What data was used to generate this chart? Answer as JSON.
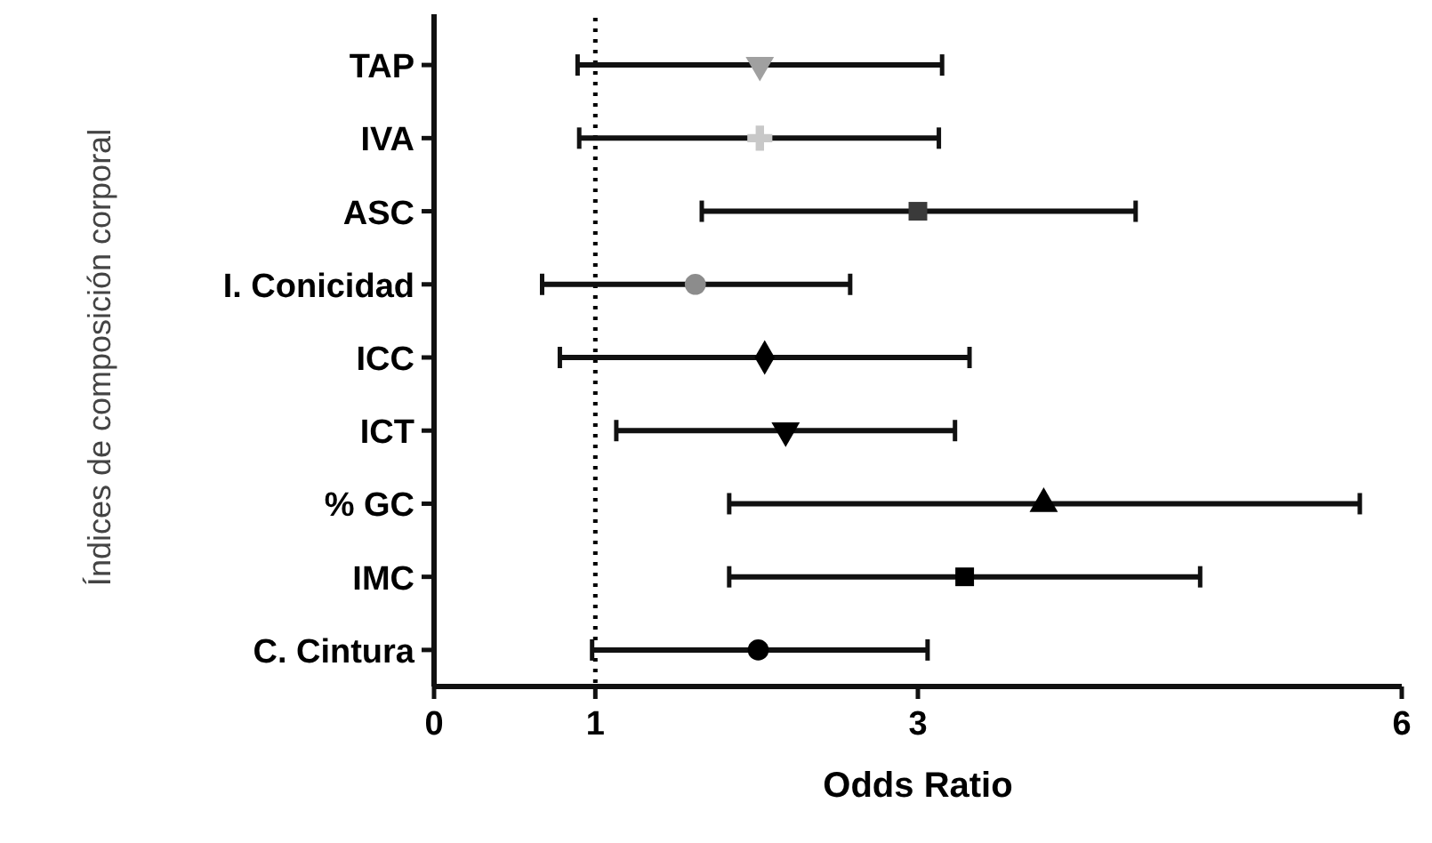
{
  "chart_data": {
    "type": "scatter",
    "orientation": "horizontal",
    "xlabel": "Odds Ratio",
    "ylabel": "Índices de composición corporal",
    "categories": [
      "TAP",
      "IVA",
      "ASC",
      "I. Conicidad",
      "ICC",
      "ICT",
      "% GC",
      "IMC",
      "C. Cintura"
    ],
    "xlim": [
      0,
      6
    ],
    "xticks": [
      0,
      1,
      3,
      6
    ],
    "grid": false,
    "ref_lines": [
      {
        "axis": "x",
        "value": 1,
        "line_style": "dotted",
        "color": "#000000"
      }
    ],
    "series": [
      {
        "color": "#a0a0a0",
        "marker": "triangle-down",
        "values": [
          2.02,
          null,
          null,
          null,
          null,
          null,
          null,
          null,
          null
        ],
        "errors": [
          [
            0.89,
            3.15
          ],
          null,
          null,
          null,
          null,
          null,
          null,
          null,
          null
        ]
      },
      {
        "color": "#c8c8c8",
        "marker": "cross",
        "values": [
          null,
          2.02,
          null,
          null,
          null,
          null,
          null,
          null,
          null
        ],
        "errors": [
          null,
          [
            0.9,
            3.13
          ],
          null,
          null,
          null,
          null,
          null,
          null,
          null
        ]
      },
      {
        "color": "#3a3a3a",
        "marker": "square",
        "values": [
          null,
          null,
          3.0,
          null,
          null,
          null,
          null,
          null,
          null
        ],
        "errors": [
          null,
          null,
          [
            1.66,
            4.35
          ],
          null,
          null,
          null,
          null,
          null,
          null
        ]
      },
      {
        "color": "#8c8c8c",
        "marker": "circle",
        "values": [
          null,
          null,
          null,
          1.62,
          null,
          null,
          null,
          null,
          null
        ],
        "errors": [
          null,
          null,
          null,
          [
            0.67,
            2.58
          ],
          null,
          null,
          null,
          null,
          null
        ]
      },
      {
        "color": "#000000",
        "marker": "diamond",
        "values": [
          null,
          null,
          null,
          null,
          2.05,
          null,
          null,
          null,
          null
        ],
        "errors": [
          null,
          null,
          null,
          null,
          [
            0.78,
            3.32
          ],
          null,
          null,
          null,
          null
        ]
      },
      {
        "color": "#000000",
        "marker": "triangle-down",
        "values": [
          null,
          null,
          null,
          null,
          null,
          2.18,
          null,
          null,
          null
        ],
        "errors": [
          null,
          null,
          null,
          null,
          null,
          [
            1.13,
            3.23
          ],
          null,
          null,
          null
        ]
      },
      {
        "color": "#000000",
        "marker": "triangle",
        "values": [
          null,
          null,
          null,
          null,
          null,
          null,
          3.78,
          null,
          null
        ],
        "errors": [
          null,
          null,
          null,
          null,
          null,
          null,
          [
            1.83,
            5.74
          ],
          null,
          null
        ]
      },
      {
        "color": "#000000",
        "marker": "square",
        "values": [
          null,
          null,
          null,
          null,
          null,
          null,
          null,
          3.29,
          null
        ],
        "errors": [
          null,
          null,
          null,
          null,
          null,
          null,
          null,
          [
            1.83,
            4.75
          ],
          null
        ]
      },
      {
        "color": "#000000",
        "marker": "circle",
        "values": [
          null,
          null,
          null,
          null,
          null,
          null,
          null,
          null,
          2.01
        ],
        "errors": [
          null,
          null,
          null,
          null,
          null,
          null,
          null,
          null,
          [
            0.98,
            3.06
          ]
        ]
      }
    ]
  }
}
